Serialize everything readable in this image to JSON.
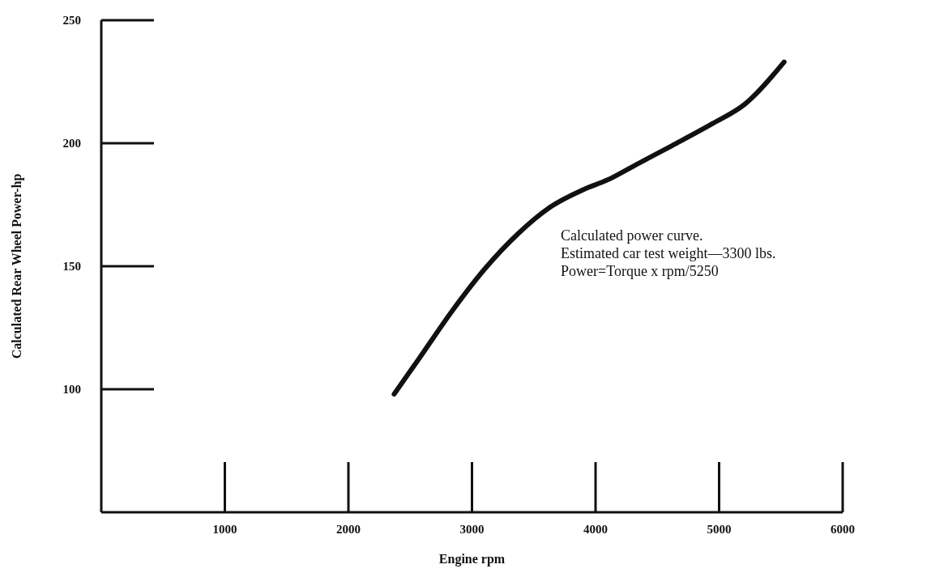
{
  "chart_data": {
    "type": "line",
    "xlabel": "Engine rpm",
    "ylabel": "Calculated Rear Wheel Power-hp",
    "annotations": [
      "Calculated power curve.",
      "Estimated car test weight—3300 lbs.",
      "Power=Torque x rpm/5250"
    ],
    "series": [
      {
        "color": "#111111",
        "x": [
          2370,
          2579,
          2842,
          3105,
          3368,
          3632,
          3895,
          4092,
          4355,
          4618,
          4947,
          5211,
          5526
        ],
        "values": [
          98,
          113,
          132,
          149,
          163,
          174,
          181,
          185,
          192,
          199,
          208,
          216,
          233
        ]
      }
    ],
    "xlim": [
      0,
      6000
    ],
    "xticks": [
      1000,
      2000,
      3000,
      4000,
      5000,
      6000
    ],
    "ylim": [
      50,
      250
    ],
    "yticks": [
      100,
      150,
      200,
      250
    ],
    "grid": false,
    "legend": false,
    "marker": "none",
    "line_style": "solid"
  }
}
